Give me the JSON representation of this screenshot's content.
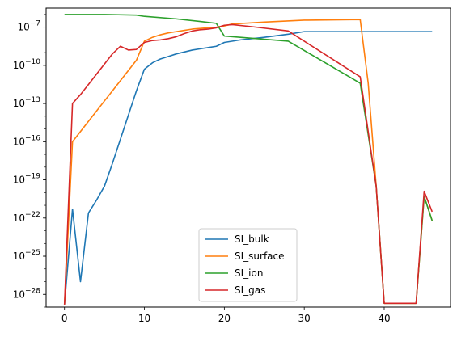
{
  "chart_data": {
    "type": "line",
    "title": "",
    "xlabel": "",
    "ylabel": "",
    "xlim": [
      -2.3,
      48.3
    ],
    "ylim_log10": [
      -29.0,
      -5.5
    ],
    "yscale": "log",
    "grid": false,
    "legend_position": "lower center",
    "x_ticks": [
      0,
      10,
      20,
      30,
      40
    ],
    "y_ticks": [
      {
        "exp": -28,
        "label": "10−28"
      },
      {
        "exp": -25,
        "label": "10−25"
      },
      {
        "exp": -22,
        "label": "10−22"
      },
      {
        "exp": -19,
        "label": "10−19"
      },
      {
        "exp": -16,
        "label": "10−16"
      },
      {
        "exp": -13,
        "label": "10−13"
      },
      {
        "exp": -10,
        "label": "10−10"
      },
      {
        "exp": -7,
        "label": "10−7"
      }
    ],
    "series": [
      {
        "name": "SI_bulk",
        "color": "#1f77b4",
        "points": [
          [
            0,
            -28.8
          ],
          [
            1,
            -21.3
          ],
          [
            2,
            -27.0
          ],
          [
            3,
            -21.6
          ],
          [
            4,
            -20.6
          ],
          [
            5,
            -19.5
          ],
          [
            6,
            -17.7
          ],
          [
            7,
            -15.8
          ],
          [
            8,
            -13.9
          ],
          [
            9,
            -12.0
          ],
          [
            10,
            -10.3
          ],
          [
            11,
            -9.8
          ],
          [
            12,
            -9.5
          ],
          [
            13,
            -9.3
          ],
          [
            14,
            -9.1
          ],
          [
            15,
            -8.95
          ],
          [
            16,
            -8.8
          ],
          [
            17,
            -8.7
          ],
          [
            18,
            -8.6
          ],
          [
            19,
            -8.5
          ],
          [
            20,
            -8.2
          ],
          [
            22,
            -8.0
          ],
          [
            25,
            -7.8
          ],
          [
            28,
            -7.55
          ],
          [
            30,
            -7.35
          ],
          [
            35,
            -7.35
          ],
          [
            40,
            -7.35
          ],
          [
            46,
            -7.35
          ]
        ]
      },
      {
        "name": "SI_surface",
        "color": "#ff7f0e",
        "points": [
          [
            0,
            -28.8
          ],
          [
            1,
            -16.0
          ],
          [
            2,
            -15.2
          ],
          [
            3,
            -14.4
          ],
          [
            4,
            -13.6
          ],
          [
            5,
            -12.8
          ],
          [
            6,
            -12.0
          ],
          [
            7,
            -11.2
          ],
          [
            8,
            -10.4
          ],
          [
            9,
            -9.6
          ],
          [
            10,
            -8.1
          ],
          [
            11,
            -7.8
          ],
          [
            12,
            -7.6
          ],
          [
            13,
            -7.45
          ],
          [
            14,
            -7.35
          ],
          [
            15,
            -7.25
          ],
          [
            16,
            -7.15
          ],
          [
            17,
            -7.1
          ],
          [
            18,
            -7.05
          ],
          [
            19,
            -7.0
          ],
          [
            20,
            -6.9
          ],
          [
            21,
            -6.75
          ],
          [
            25,
            -6.6
          ],
          [
            30,
            -6.45
          ],
          [
            37,
            -6.4
          ],
          [
            38,
            -11.4
          ],
          [
            39,
            -19.5
          ],
          [
            40,
            -28.7
          ],
          [
            44,
            -28.7
          ],
          [
            45,
            -20.3
          ],
          [
            46,
            -22.2
          ]
        ]
      },
      {
        "name": "SI_ion",
        "color": "#2ca02c",
        "points": [
          [
            0,
            -6.0
          ],
          [
            5,
            -6.0
          ],
          [
            9,
            -6.05
          ],
          [
            10,
            -6.15
          ],
          [
            14,
            -6.35
          ],
          [
            17,
            -6.55
          ],
          [
            19,
            -6.7
          ],
          [
            20,
            -7.7
          ],
          [
            22,
            -7.8
          ],
          [
            28,
            -8.1
          ],
          [
            37,
            -11.4
          ],
          [
            39,
            -19.5
          ],
          [
            40,
            -28.7
          ],
          [
            44,
            -28.7
          ],
          [
            45,
            -20.3
          ],
          [
            46,
            -22.2
          ]
        ]
      },
      {
        "name": "SI_gas",
        "color": "#d62728",
        "points": [
          [
            0,
            -28.8
          ],
          [
            1,
            -13.0
          ],
          [
            2,
            -12.3
          ],
          [
            3,
            -11.5
          ],
          [
            4,
            -10.7
          ],
          [
            5,
            -9.9
          ],
          [
            6,
            -9.1
          ],
          [
            7,
            -8.5
          ],
          [
            8,
            -8.8
          ],
          [
            9,
            -8.75
          ],
          [
            10,
            -8.2
          ],
          [
            11,
            -8.05
          ],
          [
            12,
            -8.0
          ],
          [
            13,
            -7.9
          ],
          [
            14,
            -7.75
          ],
          [
            15,
            -7.5
          ],
          [
            16,
            -7.3
          ],
          [
            17,
            -7.2
          ],
          [
            18,
            -7.15
          ],
          [
            19,
            -7.05
          ],
          [
            20,
            -6.85
          ],
          [
            21,
            -6.8
          ],
          [
            24,
            -7.0
          ],
          [
            28,
            -7.3
          ],
          [
            37,
            -10.9
          ],
          [
            39,
            -19.5
          ],
          [
            40,
            -28.7
          ],
          [
            44,
            -28.7
          ],
          [
            45,
            -19.9
          ],
          [
            46,
            -21.5
          ]
        ]
      }
    ]
  }
}
